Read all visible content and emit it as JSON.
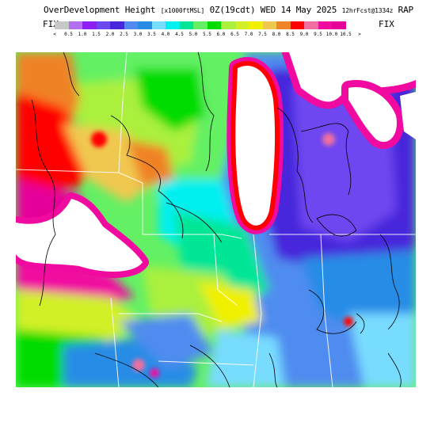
{
  "header": {
    "title_main": "OverDevelopment Height",
    "title_units": "[x1000ftMSL]",
    "title_time": "0Z(19cdt) WED 14 May 2025",
    "title_fcst": "12hrFcst@1334z",
    "title_model": "RAP",
    "fix_left": "FIX",
    "fix_right": "FIX"
  },
  "legend": {
    "colors": [
      "#c8c8c8",
      "#b46ef0",
      "#8c1ef0",
      "#6e46f0",
      "#4628dc",
      "#508cf0",
      "#288ce6",
      "#78dcff",
      "#00f0f0",
      "#00e696",
      "#64f064",
      "#00dc00",
      "#aaf03c",
      "#d2f028",
      "#f0f000",
      "#f0c850",
      "#f08228",
      "#ff0000",
      "#f06ea0",
      "#f00aa0",
      "#e6009a"
    ],
    "labels": [
      "<",
      "0.5",
      "1.0",
      "1.5",
      "2.0",
      "2.5",
      "3.0",
      "3.5",
      "4.0",
      "4.5",
      "5.0",
      "5.5",
      "6.0",
      "6.5",
      "7.0",
      "7.5",
      "8.0",
      "8.5",
      "9.0",
      "9.5",
      "10.0",
      "10.5",
      ">"
    ]
  },
  "map": {
    "region": "Upper Midwest / Great Lakes",
    "features": [
      "lake-michigan",
      "lake-huron",
      "lake-superior-edge",
      "plains-lake-system",
      "state-borders",
      "county-borders"
    ]
  }
}
